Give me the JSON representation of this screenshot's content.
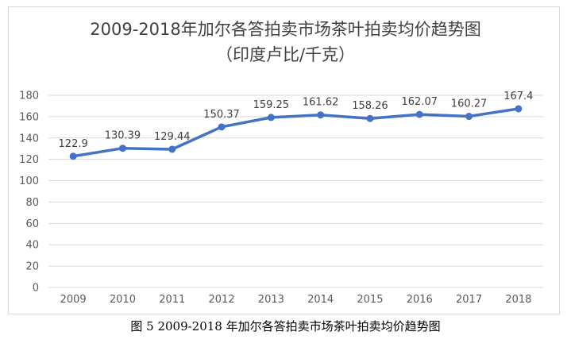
{
  "chart_data": {
    "type": "line",
    "title": "2009-2018年加尔各答拍卖市场茶叶拍卖均价趋势图",
    "subtitle": "（印度卢比/千克）",
    "categories": [
      "2009",
      "2010",
      "2011",
      "2012",
      "2013",
      "2014",
      "2015",
      "2016",
      "2017",
      "2018"
    ],
    "series": [
      {
        "values": [
          122.9,
          130.39,
          129.44,
          150.37,
          159.25,
          161.62,
          158.26,
          162.07,
          160.27,
          167.4
        ],
        "labels": [
          "122.9",
          "130.39",
          "129.44",
          "150.37",
          "159.25",
          "161.62",
          "158.26",
          "162.07",
          "160.27",
          "167.4"
        ]
      }
    ],
    "ylim": [
      0,
      180
    ],
    "yticks": [
      "0",
      "20",
      "40",
      "60",
      "80",
      "100",
      "120",
      "140",
      "160",
      "180"
    ],
    "grid": true,
    "legend": "none",
    "colors": {
      "line": "#4472c4",
      "grid": "#d9d9d9",
      "text": "#595959"
    }
  },
  "caption": "图 5 2009-2018 年加尔各答拍卖市场茶叶拍卖均价趋势图"
}
